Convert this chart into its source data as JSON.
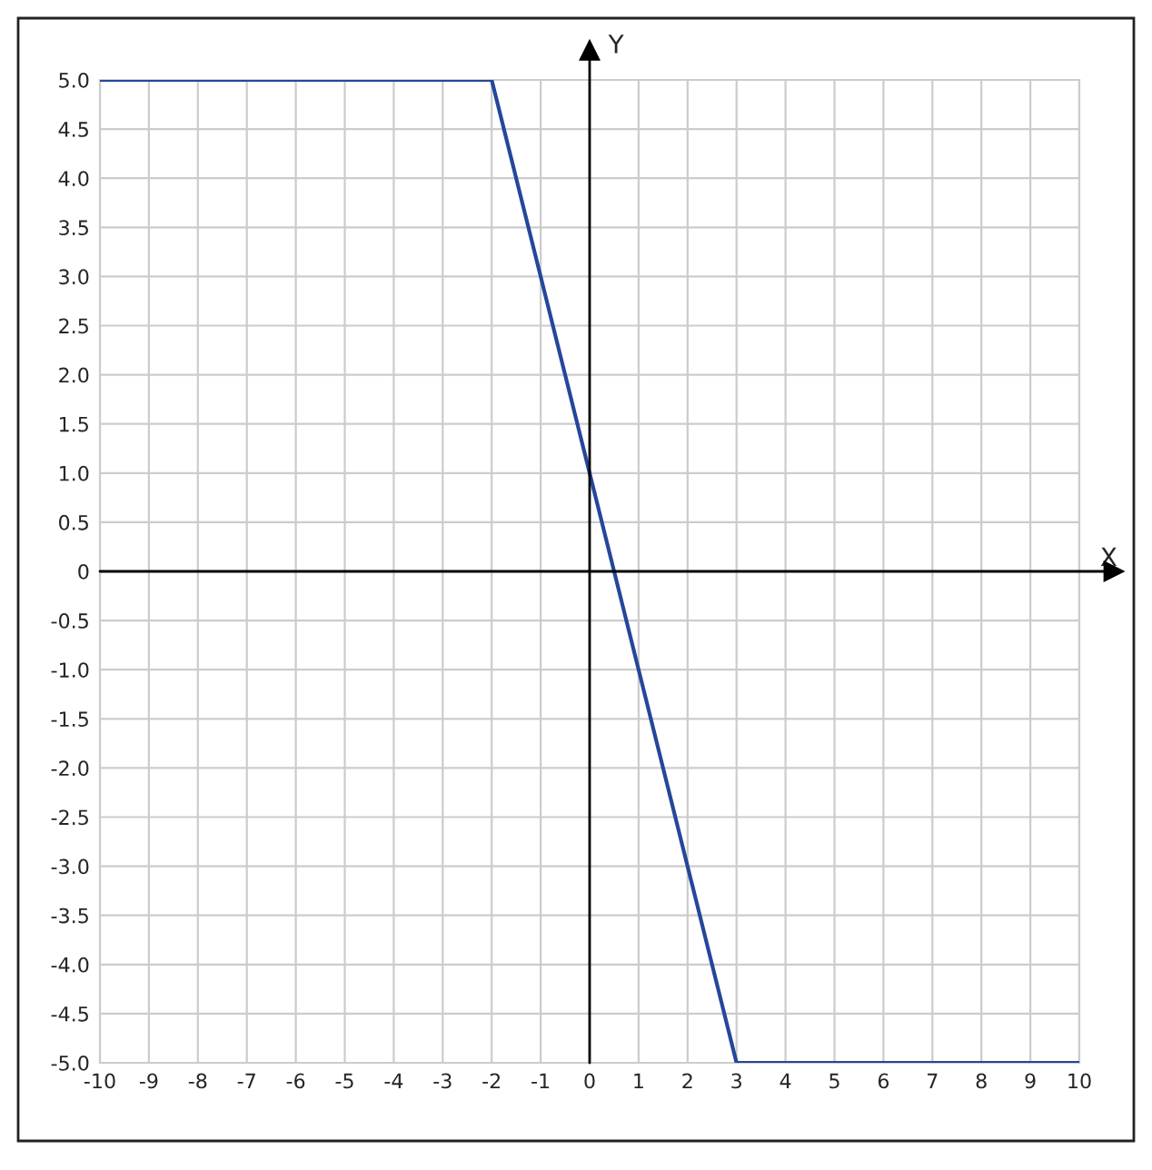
{
  "chart_data": {
    "type": "line",
    "xlabel": "X",
    "ylabel": "Y",
    "x": [
      -10,
      -2,
      3,
      10
    ],
    "series": [
      {
        "color": "#24479b",
        "values": [
          5,
          5,
          -5,
          -5
        ]
      }
    ],
    "xlim": [
      -10,
      10
    ],
    "ylim": [
      -5,
      5
    ],
    "xticks": [
      -10,
      -9,
      -8,
      -7,
      -6,
      -5,
      -4,
      -3,
      -2,
      -1,
      0,
      1,
      2,
      3,
      4,
      5,
      6,
      7,
      8,
      9,
      10
    ],
    "yticks": [
      {
        "value": 5,
        "label": "5.0"
      },
      {
        "value": 4.5,
        "label": "4.5"
      },
      {
        "value": 4,
        "label": "4.0"
      },
      {
        "value": 3.5,
        "label": "3.5"
      },
      {
        "value": 3,
        "label": "3.0"
      },
      {
        "value": 2.5,
        "label": "2.5"
      },
      {
        "value": 2,
        "label": "2.0"
      },
      {
        "value": 1.5,
        "label": "1.5"
      },
      {
        "value": 1,
        "label": "1.0"
      },
      {
        "value": 0.5,
        "label": "0.5"
      },
      0,
      {
        "value": -0.5,
        "label": "-0.5"
      },
      {
        "value": -1,
        "label": "-1.0"
      },
      {
        "value": -1.5,
        "label": "-1.5"
      },
      {
        "value": -2,
        "label": "-2.0"
      },
      {
        "value": -2.5,
        "label": "-2.5"
      },
      {
        "value": -3,
        "label": "-3.0"
      },
      {
        "value": -3.5,
        "label": "-3.5"
      },
      {
        "value": -4,
        "label": "-4.0"
      },
      {
        "value": -4.5,
        "label": "-4.5"
      },
      {
        "value": -5,
        "label": "-5.0"
      }
    ],
    "grid": true,
    "marker": "none",
    "line_style": "solid",
    "legend": false
  }
}
